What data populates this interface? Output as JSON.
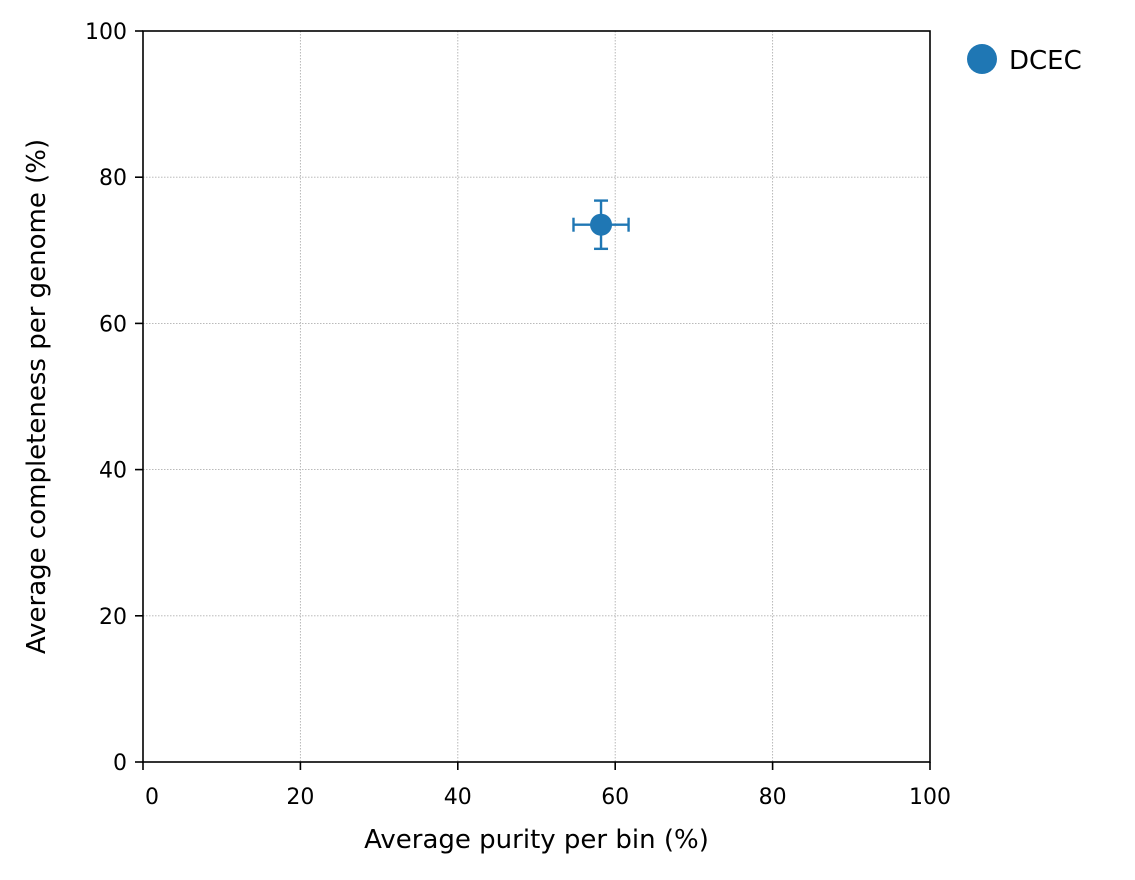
{
  "chart_data": {
    "type": "scatter",
    "xlabel": "Average purity per bin (%)",
    "ylabel": "Average completeness per genome (%)",
    "xlim": [
      0,
      100
    ],
    "ylim": [
      0,
      100
    ],
    "xticks": [
      0,
      20,
      40,
      60,
      80,
      100
    ],
    "yticks": [
      0,
      20,
      40,
      60,
      80,
      100
    ],
    "grid": true,
    "legend_position": "outside-top-right",
    "series": [
      {
        "name": "DCEC",
        "color": "#1f77b4",
        "points": [
          {
            "x": 58.2,
            "y": 73.5,
            "x_err": 3.5,
            "y_err": 3.3
          }
        ]
      }
    ]
  }
}
